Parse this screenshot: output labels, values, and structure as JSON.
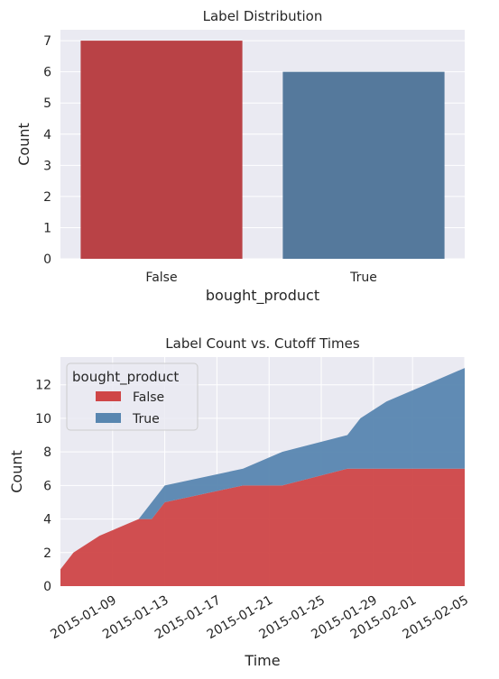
{
  "chart_data": [
    {
      "type": "bar",
      "title": "Label Distribution",
      "xlabel": "bought_product",
      "ylabel": "Count",
      "categories": [
        "False",
        "True"
      ],
      "values": [
        7,
        6
      ],
      "colors": [
        "#b94246",
        "#55799c"
      ],
      "ylim": [
        0,
        7.35
      ],
      "yticks": [
        0,
        1,
        2,
        3,
        4,
        5,
        6,
        7
      ],
      "grid": true
    },
    {
      "type": "area",
      "stacked": true,
      "title": "Label Count vs. Cutoff Times",
      "xlabel": "Time",
      "ylabel": "Count",
      "x": [
        "2015-01-05",
        "2015-01-06",
        "2015-01-08",
        "2015-01-11",
        "2015-01-12",
        "2015-01-13",
        "2015-01-19",
        "2015-01-22",
        "2015-01-27",
        "2015-01-28",
        "2015-01-30",
        "2015-02-02",
        "2015-02-05"
      ],
      "series": [
        {
          "name": "False",
          "color": "#cf4647",
          "values": [
            1,
            2,
            3,
            4,
            4,
            5,
            6,
            6,
            7,
            7,
            7,
            7,
            7
          ]
        },
        {
          "name": "True",
          "color": "#5886b0",
          "values": [
            0,
            0,
            0,
            0,
            1,
            1,
            1,
            2,
            2,
            3,
            4,
            5,
            6
          ]
        }
      ],
      "xticks": [
        "2015-01-09",
        "2015-01-13",
        "2015-01-17",
        "2015-01-21",
        "2015-01-25",
        "2015-01-29",
        "2015-02-01",
        "2015-02-05"
      ],
      "xlim": [
        "2015-01-05",
        "2015-02-05"
      ],
      "ylim": [
        0,
        13.65
      ],
      "yticks": [
        0,
        2,
        4,
        6,
        8,
        10,
        12
      ],
      "legend": {
        "title": "bought_product",
        "position": "top-left"
      },
      "grid": true
    }
  ]
}
